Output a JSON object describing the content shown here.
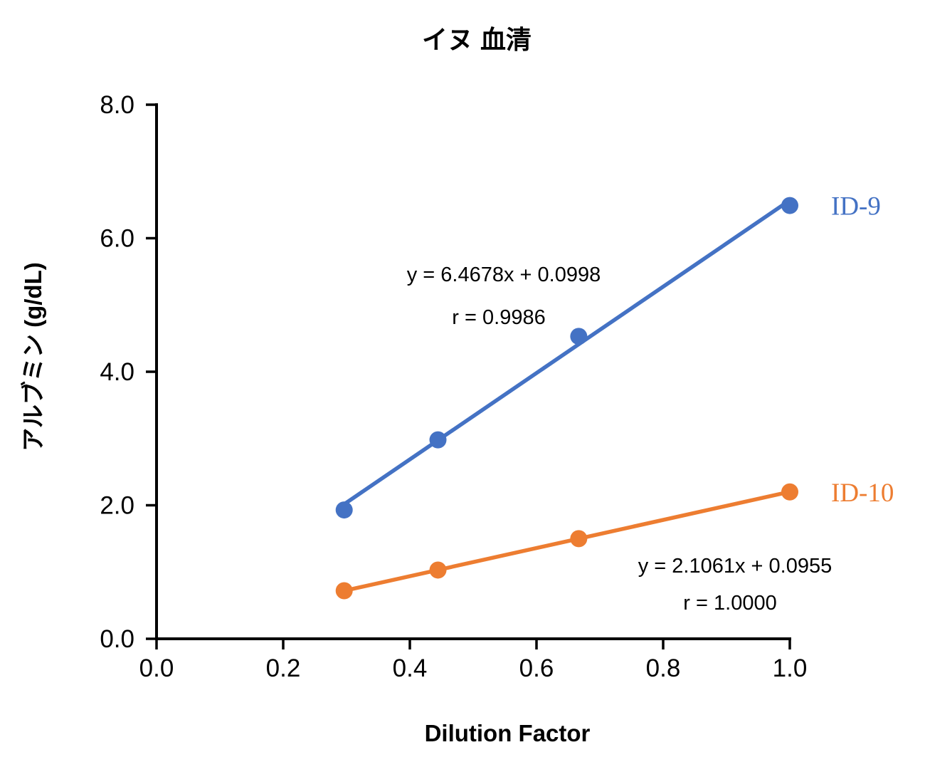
{
  "chart_data": {
    "type": "scatter",
    "title": "イヌ 血清",
    "xlabel": "Dilution Factor",
    "ylabel": "アルブミン (g/dL)",
    "xlim": [
      0.0,
      1.0
    ],
    "ylim": [
      0.0,
      8.0
    ],
    "x_ticks": [
      "0.0",
      "0.2",
      "0.4",
      "0.6",
      "0.8",
      "1.0"
    ],
    "y_ticks": [
      "0.0",
      "2.0",
      "4.0",
      "6.0",
      "8.0"
    ],
    "grid": false,
    "legend_position": "right-of-last-point",
    "axis_color": "#000000",
    "series": [
      {
        "name": "ID-9",
        "color": "#4472C4",
        "x": [
          0.2963,
          0.4444,
          0.6667,
          1.0
        ],
        "y": [
          1.93,
          2.98,
          4.53,
          6.49
        ],
        "trendline": {
          "slope": 6.4678,
          "intercept": 0.0998
        },
        "equation_label": "y = 6.4678x + 0.0998",
        "r_label": "r = 0.9986"
      },
      {
        "name": "ID-10",
        "color": "#ED7D31",
        "x": [
          0.2963,
          0.4444,
          0.6667,
          1.0
        ],
        "y": [
          0.72,
          1.03,
          1.5,
          2.2
        ],
        "trendline": {
          "slope": 2.1061,
          "intercept": 0.0955
        },
        "equation_label": "y = 2.1061x + 0.0955",
        "r_label": "r = 1.0000"
      }
    ]
  }
}
